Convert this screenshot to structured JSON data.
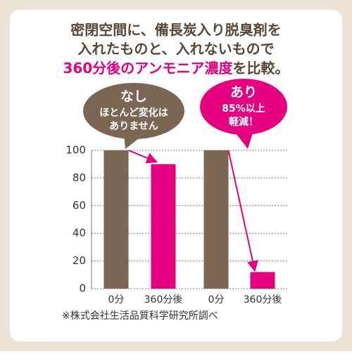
{
  "chart_data": {
    "type": "bar",
    "title": [
      "密閉空間に、備長炭入り脱臭剤を",
      "入れたものと、入れないもので",
      "360分後のアンモニア濃度",
      "を比較。"
    ],
    "categories": [
      "0分",
      "360分後",
      "0分",
      "360分後"
    ],
    "values": [
      100,
      90,
      100,
      12
    ],
    "colors": [
      "#7b6654",
      "#e4007f",
      "#7b6654",
      "#e4007f"
    ],
    "ylim": [
      0,
      100
    ],
    "yticks": [
      0,
      20,
      40,
      60,
      80,
      100
    ],
    "grid": true,
    "callouts": [
      {
        "heading": "なし",
        "lines": [
          "ほとんど変化は",
          "ありません"
        ],
        "color": "#7b6654"
      },
      {
        "heading": "あり",
        "lines": [
          "85%以上",
          "軽減！"
        ],
        "color": "#e4007f"
      }
    ],
    "note": "※株式会社生活品質科学研究所調べ"
  }
}
